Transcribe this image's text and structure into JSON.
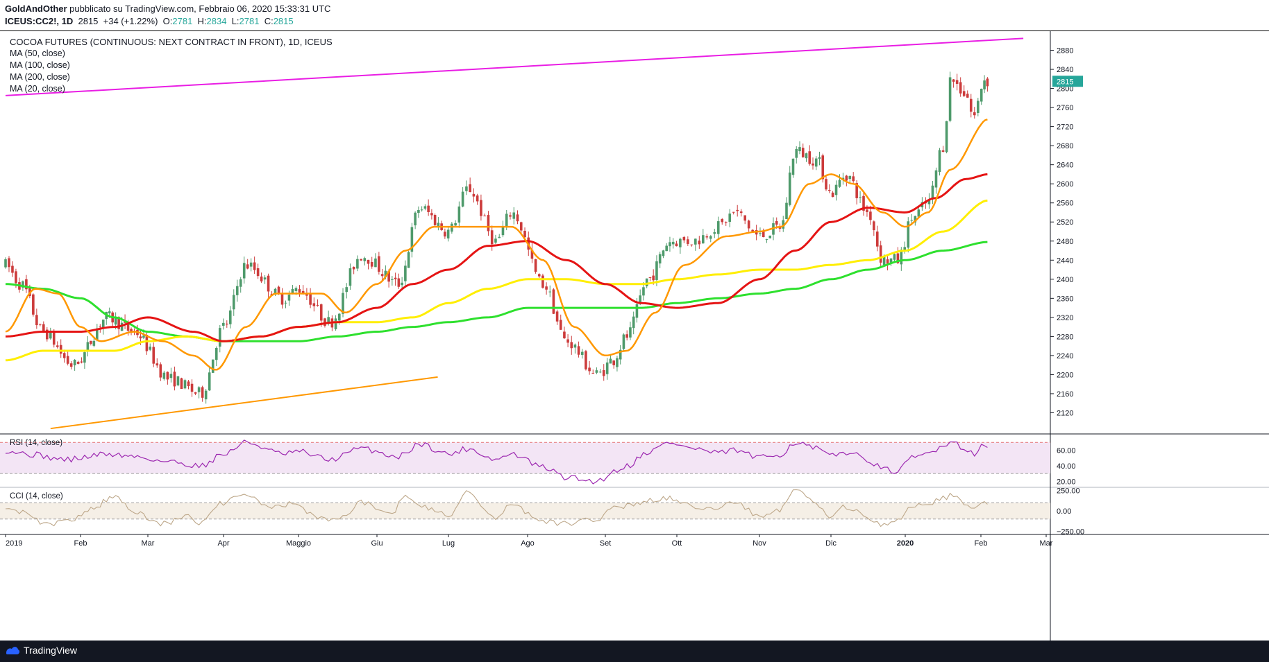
{
  "header": {
    "author": "GoldAndOther",
    "published": "pubblicato su TradingView.com, Febbraio 06, 2020 15:33:31 UTC",
    "symbol": "ICEUS:CC2!, 1D",
    "last": "2815",
    "change": "+34 (+1.22%)",
    "o_label": "O:",
    "o": "2781",
    "h_label": "H:",
    "h": "2834",
    "l_label": "L:",
    "l": "2781",
    "c_label": "C:",
    "c": "2815"
  },
  "legend": {
    "title": "COCOA FUTURES (CONTINUOUS: NEXT CONTRACT IN FRONT), 1D, ICEUS",
    "ma50": "MA (50, close)",
    "ma100": "MA (100, close)",
    "ma200": "MA (200, close)",
    "ma20": "MA (20, close)"
  },
  "footer": {
    "brand": "TradingView"
  },
  "colors": {
    "up": "#26a69a",
    "down": "#ef5350",
    "candle_up": "#4e9a6b",
    "candle_down": "#cc3b3b",
    "ma20": "#ff9800",
    "ma50": "#e51414",
    "ma100": "#ffee00",
    "ma200": "#2ee02e",
    "trend_top": "#e91ee4",
    "trend_bottom": "#ff9800",
    "rsi": "#9c27b0",
    "rsi_band": "#f3e5f5",
    "cci": "#bda789"
  },
  "chart_data": {
    "type": "candlestick",
    "title": "COCOA FUTURES (CONTINUOUS: NEXT CONTRACT IN FRONT), 1D, ICEUS",
    "ylim": [
      2080,
      2920
    ],
    "price_ticks": [
      2120,
      2160,
      2200,
      2240,
      2280,
      2320,
      2360,
      2400,
      2440,
      2480,
      2520,
      2560,
      2600,
      2640,
      2680,
      2720,
      2760,
      2800,
      2840,
      2880
    ],
    "current_price_label": "2815",
    "x_labels": [
      "2019",
      "Feb",
      "Mar",
      "Apr",
      "Maggio",
      "Giu",
      "Lug",
      "Ago",
      "Set",
      "Ott",
      "Nov",
      "Dic",
      "2020",
      "Feb",
      "Mar"
    ],
    "price_anchors": [
      {
        "m": 0.0,
        "p": 2430
      },
      {
        "m": 0.2,
        "p": 2390
      },
      {
        "m": 0.5,
        "p": 2290
      },
      {
        "m": 0.9,
        "p": 2220
      },
      {
        "m": 1.4,
        "p": 2320
      },
      {
        "m": 1.8,
        "p": 2290
      },
      {
        "m": 2.3,
        "p": 2190
      },
      {
        "m": 2.7,
        "p": 2160
      },
      {
        "m": 3.0,
        "p": 2300
      },
      {
        "m": 3.3,
        "p": 2430
      },
      {
        "m": 3.8,
        "p": 2360
      },
      {
        "m": 4.0,
        "p": 2380
      },
      {
        "m": 4.4,
        "p": 2310
      },
      {
        "m": 4.8,
        "p": 2450
      },
      {
        "m": 5.3,
        "p": 2390
      },
      {
        "m": 5.6,
        "p": 2550
      },
      {
        "m": 6.0,
        "p": 2500
      },
      {
        "m": 6.25,
        "p": 2590
      },
      {
        "m": 6.6,
        "p": 2480
      },
      {
        "m": 6.8,
        "p": 2540
      },
      {
        "m": 7.2,
        "p": 2390
      },
      {
        "m": 7.5,
        "p": 2270
      },
      {
        "m": 7.9,
        "p": 2200
      },
      {
        "m": 8.1,
        "p": 2230
      },
      {
        "m": 8.3,
        "p": 2280
      },
      {
        "m": 8.6,
        "p": 2400
      },
      {
        "m": 8.9,
        "p": 2480
      },
      {
        "m": 9.2,
        "p": 2480
      },
      {
        "m": 9.5,
        "p": 2510
      },
      {
        "m": 9.7,
        "p": 2540
      },
      {
        "m": 10.0,
        "p": 2490
      },
      {
        "m": 10.3,
        "p": 2510
      },
      {
        "m": 10.5,
        "p": 2670
      },
      {
        "m": 10.8,
        "p": 2650
      },
      {
        "m": 11.0,
        "p": 2580
      },
      {
        "m": 11.2,
        "p": 2620
      },
      {
        "m": 11.5,
        "p": 2540
      },
      {
        "m": 11.7,
        "p": 2440
      },
      {
        "m": 11.9,
        "p": 2440
      },
      {
        "m": 12.1,
        "p": 2530
      },
      {
        "m": 12.3,
        "p": 2560
      },
      {
        "m": 12.5,
        "p": 2680
      },
      {
        "m": 12.6,
        "p": 2820
      },
      {
        "m": 12.8,
        "p": 2790
      },
      {
        "m": 12.9,
        "p": 2740
      },
      {
        "m": 13.05,
        "p": 2820
      },
      {
        "m": 13.1,
        "p": 2815
      }
    ],
    "ma20_anchors": [
      {
        "m": 0.0,
        "p": 2290
      },
      {
        "m": 0.4,
        "p": 2380
      },
      {
        "m": 0.7,
        "p": 2370
      },
      {
        "m": 1.0,
        "p": 2300
      },
      {
        "m": 1.3,
        "p": 2270
      },
      {
        "m": 1.8,
        "p": 2290
      },
      {
        "m": 2.2,
        "p": 2270
      },
      {
        "m": 2.6,
        "p": 2240
      },
      {
        "m": 2.9,
        "p": 2210
      },
      {
        "m": 3.3,
        "p": 2300
      },
      {
        "m": 3.7,
        "p": 2370
      },
      {
        "m": 4.3,
        "p": 2370
      },
      {
        "m": 4.6,
        "p": 2330
      },
      {
        "m": 5.0,
        "p": 2390
      },
      {
        "m": 5.4,
        "p": 2460
      },
      {
        "m": 5.8,
        "p": 2510
      },
      {
        "m": 6.3,
        "p": 2510
      },
      {
        "m": 6.8,
        "p": 2510
      },
      {
        "m": 7.2,
        "p": 2440
      },
      {
        "m": 7.6,
        "p": 2300
      },
      {
        "m": 8.0,
        "p": 2240
      },
      {
        "m": 8.3,
        "p": 2250
      },
      {
        "m": 8.7,
        "p": 2330
      },
      {
        "m": 9.1,
        "p": 2430
      },
      {
        "m": 9.6,
        "p": 2490
      },
      {
        "m": 10.0,
        "p": 2500
      },
      {
        "m": 10.3,
        "p": 2510
      },
      {
        "m": 10.7,
        "p": 2600
      },
      {
        "m": 11.0,
        "p": 2620
      },
      {
        "m": 11.3,
        "p": 2600
      },
      {
        "m": 11.7,
        "p": 2540
      },
      {
        "m": 12.0,
        "p": 2510
      },
      {
        "m": 12.3,
        "p": 2540
      },
      {
        "m": 12.6,
        "p": 2630
      },
      {
        "m": 13.1,
        "p": 2735
      }
    ],
    "ma50_anchors": [
      {
        "m": 0.0,
        "p": 2280
      },
      {
        "m": 0.5,
        "p": 2290
      },
      {
        "m": 1.0,
        "p": 2290
      },
      {
        "m": 1.5,
        "p": 2300
      },
      {
        "m": 2.0,
        "p": 2320
      },
      {
        "m": 2.6,
        "p": 2290
      },
      {
        "m": 3.0,
        "p": 2270
      },
      {
        "m": 3.5,
        "p": 2280
      },
      {
        "m": 4.0,
        "p": 2300
      },
      {
        "m": 4.5,
        "p": 2310
      },
      {
        "m": 5.0,
        "p": 2340
      },
      {
        "m": 5.5,
        "p": 2390
      },
      {
        "m": 6.0,
        "p": 2420
      },
      {
        "m": 6.5,
        "p": 2470
      },
      {
        "m": 7.0,
        "p": 2480
      },
      {
        "m": 7.5,
        "p": 2440
      },
      {
        "m": 8.0,
        "p": 2390
      },
      {
        "m": 8.5,
        "p": 2350
      },
      {
        "m": 9.0,
        "p": 2340
      },
      {
        "m": 9.5,
        "p": 2350
      },
      {
        "m": 10.0,
        "p": 2400
      },
      {
        "m": 10.5,
        "p": 2460
      },
      {
        "m": 11.0,
        "p": 2520
      },
      {
        "m": 11.5,
        "p": 2550
      },
      {
        "m": 12.0,
        "p": 2540
      },
      {
        "m": 12.4,
        "p": 2570
      },
      {
        "m": 12.8,
        "p": 2610
      },
      {
        "m": 13.1,
        "p": 2620
      }
    ],
    "ma100_anchors": [
      {
        "m": 0.0,
        "p": 2230
      },
      {
        "m": 0.5,
        "p": 2250
      },
      {
        "m": 1.0,
        "p": 2250
      },
      {
        "m": 1.5,
        "p": 2250
      },
      {
        "m": 2.0,
        "p": 2270
      },
      {
        "m": 2.5,
        "p": 2280
      },
      {
        "m": 3.0,
        "p": 2270
      },
      {
        "m": 3.5,
        "p": 2280
      },
      {
        "m": 4.0,
        "p": 2300
      },
      {
        "m": 4.5,
        "p": 2310
      },
      {
        "m": 5.0,
        "p": 2310
      },
      {
        "m": 5.5,
        "p": 2320
      },
      {
        "m": 6.0,
        "p": 2350
      },
      {
        "m": 6.5,
        "p": 2380
      },
      {
        "m": 7.0,
        "p": 2400
      },
      {
        "m": 7.5,
        "p": 2400
      },
      {
        "m": 8.0,
        "p": 2390
      },
      {
        "m": 8.5,
        "p": 2390
      },
      {
        "m": 9.0,
        "p": 2400
      },
      {
        "m": 9.5,
        "p": 2410
      },
      {
        "m": 10.0,
        "p": 2420
      },
      {
        "m": 10.5,
        "p": 2420
      },
      {
        "m": 11.0,
        "p": 2430
      },
      {
        "m": 11.5,
        "p": 2440
      },
      {
        "m": 12.0,
        "p": 2460
      },
      {
        "m": 12.5,
        "p": 2500
      },
      {
        "m": 13.1,
        "p": 2565
      }
    ],
    "ma200_anchors": [
      {
        "m": 0.0,
        "p": 2390
      },
      {
        "m": 0.5,
        "p": 2380
      },
      {
        "m": 1.0,
        "p": 2360
      },
      {
        "m": 1.5,
        "p": 2320
      },
      {
        "m": 2.0,
        "p": 2290
      },
      {
        "m": 2.5,
        "p": 2280
      },
      {
        "m": 3.0,
        "p": 2270
      },
      {
        "m": 3.5,
        "p": 2270
      },
      {
        "m": 4.0,
        "p": 2270
      },
      {
        "m": 4.5,
        "p": 2280
      },
      {
        "m": 5.0,
        "p": 2290
      },
      {
        "m": 5.5,
        "p": 2300
      },
      {
        "m": 6.0,
        "p": 2310
      },
      {
        "m": 6.5,
        "p": 2320
      },
      {
        "m": 7.0,
        "p": 2340
      },
      {
        "m": 7.5,
        "p": 2340
      },
      {
        "m": 8.0,
        "p": 2340
      },
      {
        "m": 8.5,
        "p": 2340
      },
      {
        "m": 9.0,
        "p": 2350
      },
      {
        "m": 9.5,
        "p": 2360
      },
      {
        "m": 10.0,
        "p": 2370
      },
      {
        "m": 10.5,
        "p": 2380
      },
      {
        "m": 11.0,
        "p": 2400
      },
      {
        "m": 11.5,
        "p": 2420
      },
      {
        "m": 12.0,
        "p": 2440
      },
      {
        "m": 12.5,
        "p": 2460
      },
      {
        "m": 13.1,
        "p": 2478
      }
    ],
    "trendline_top": [
      {
        "m": 0.0,
        "p": 2785
      },
      {
        "m": 13.65,
        "p": 2905
      }
    ],
    "trendline_bottom": [
      {
        "m": 0.6,
        "p": 2087
      },
      {
        "m": 5.85,
        "p": 2195
      }
    ],
    "rsi": {
      "label": "RSI (14, close)",
      "ticks": [
        "60.00",
        "40.00",
        "20.00"
      ],
      "ylim": [
        15,
        80
      ],
      "upper": 70,
      "lower": 30,
      "anchors": [
        {
          "m": 0.0,
          "v": 60
        },
        {
          "m": 0.3,
          "v": 55
        },
        {
          "m": 0.8,
          "v": 48
        },
        {
          "m": 1.4,
          "v": 55
        },
        {
          "m": 1.8,
          "v": 52
        },
        {
          "m": 2.3,
          "v": 45
        },
        {
          "m": 2.7,
          "v": 40
        },
        {
          "m": 3.0,
          "v": 55
        },
        {
          "m": 3.3,
          "v": 70
        },
        {
          "m": 3.8,
          "v": 55
        },
        {
          "m": 4.0,
          "v": 58
        },
        {
          "m": 4.4,
          "v": 48
        },
        {
          "m": 4.8,
          "v": 62
        },
        {
          "m": 5.3,
          "v": 52
        },
        {
          "m": 5.6,
          "v": 68
        },
        {
          "m": 6.0,
          "v": 55
        },
        {
          "m": 6.25,
          "v": 62
        },
        {
          "m": 6.6,
          "v": 48
        },
        {
          "m": 6.8,
          "v": 55
        },
        {
          "m": 7.2,
          "v": 38
        },
        {
          "m": 7.5,
          "v": 25
        },
        {
          "m": 7.9,
          "v": 20
        },
        {
          "m": 8.1,
          "v": 32
        },
        {
          "m": 8.3,
          "v": 40
        },
        {
          "m": 8.6,
          "v": 58
        },
        {
          "m": 8.9,
          "v": 70
        },
        {
          "m": 9.2,
          "v": 62
        },
        {
          "m": 9.5,
          "v": 56
        },
        {
          "m": 9.7,
          "v": 60
        },
        {
          "m": 10.0,
          "v": 50
        },
        {
          "m": 10.3,
          "v": 55
        },
        {
          "m": 10.5,
          "v": 70
        },
        {
          "m": 10.8,
          "v": 62
        },
        {
          "m": 11.0,
          "v": 52
        },
        {
          "m": 11.2,
          "v": 58
        },
        {
          "m": 11.5,
          "v": 48
        },
        {
          "m": 11.7,
          "v": 35
        },
        {
          "m": 11.9,
          "v": 33
        },
        {
          "m": 12.1,
          "v": 50
        },
        {
          "m": 12.3,
          "v": 56
        },
        {
          "m": 12.5,
          "v": 66
        },
        {
          "m": 12.6,
          "v": 72
        },
        {
          "m": 12.8,
          "v": 62
        },
        {
          "m": 12.9,
          "v": 56
        },
        {
          "m": 13.05,
          "v": 66
        },
        {
          "m": 13.1,
          "v": 63
        }
      ]
    },
    "cci": {
      "label": "CCI (14, close)",
      "ticks": [
        "250.00",
        "0.00",
        "−250.00"
      ],
      "ylim": [
        -280,
        280
      ],
      "upper": 100,
      "lower": -100,
      "anchors": [
        {
          "m": 0.0,
          "v": 60
        },
        {
          "m": 0.3,
          "v": -30
        },
        {
          "m": 0.5,
          "v": -180
        },
        {
          "m": 0.9,
          "v": -100
        },
        {
          "m": 1.2,
          "v": 50
        },
        {
          "m": 1.5,
          "v": 180
        },
        {
          "m": 1.8,
          "v": 0
        },
        {
          "m": 2.2,
          "v": -160
        },
        {
          "m": 2.5,
          "v": -60
        },
        {
          "m": 2.7,
          "v": -140
        },
        {
          "m": 3.0,
          "v": 100
        },
        {
          "m": 3.3,
          "v": 200
        },
        {
          "m": 3.6,
          "v": 40
        },
        {
          "m": 3.9,
          "v": 90
        },
        {
          "m": 4.2,
          "v": -60
        },
        {
          "m": 4.5,
          "v": -120
        },
        {
          "m": 4.8,
          "v": 110
        },
        {
          "m": 5.2,
          "v": -40
        },
        {
          "m": 5.4,
          "v": 200
        },
        {
          "m": 5.7,
          "v": 40
        },
        {
          "m": 6.0,
          "v": -60
        },
        {
          "m": 6.25,
          "v": 230
        },
        {
          "m": 6.6,
          "v": -100
        },
        {
          "m": 6.8,
          "v": 80
        },
        {
          "m": 7.2,
          "v": -130
        },
        {
          "m": 7.5,
          "v": -160
        },
        {
          "m": 7.9,
          "v": -100
        },
        {
          "m": 8.1,
          "v": 60
        },
        {
          "m": 8.3,
          "v": 60
        },
        {
          "m": 8.6,
          "v": 120
        },
        {
          "m": 8.9,
          "v": 150
        },
        {
          "m": 9.2,
          "v": 60
        },
        {
          "m": 9.5,
          "v": 30
        },
        {
          "m": 9.7,
          "v": 100
        },
        {
          "m": 10.0,
          "v": -60
        },
        {
          "m": 10.3,
          "v": 20
        },
        {
          "m": 10.5,
          "v": 270
        },
        {
          "m": 10.8,
          "v": 80
        },
        {
          "m": 11.0,
          "v": -80
        },
        {
          "m": 11.2,
          "v": 50
        },
        {
          "m": 11.5,
          "v": -80
        },
        {
          "m": 11.7,
          "v": -160
        },
        {
          "m": 11.9,
          "v": -120
        },
        {
          "m": 12.1,
          "v": 60
        },
        {
          "m": 12.3,
          "v": 80
        },
        {
          "m": 12.5,
          "v": 150
        },
        {
          "m": 12.6,
          "v": 200
        },
        {
          "m": 12.8,
          "v": 80
        },
        {
          "m": 12.9,
          "v": 0
        },
        {
          "m": 13.05,
          "v": 100
        },
        {
          "m": 13.1,
          "v": 60
        }
      ]
    }
  }
}
